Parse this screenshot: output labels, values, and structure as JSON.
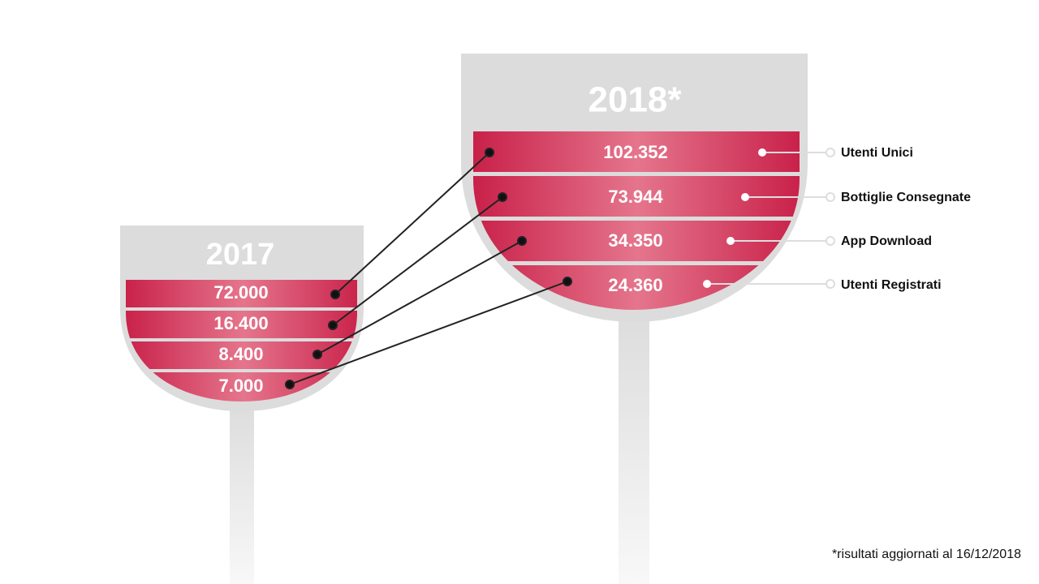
{
  "glasses": [
    {
      "year": "2017",
      "values": [
        "72.000",
        "16.400",
        "8.400",
        "7.000"
      ]
    },
    {
      "year": "2018*",
      "values": [
        "102.352",
        "73.944",
        "34.350",
        "24.360"
      ]
    }
  ],
  "metrics": [
    "Utenti Unici",
    "Bottiglie Consegnate",
    "App Download",
    "Utenti Registrati"
  ],
  "footnote": "*risultati aggiornati al 16/12/2018"
}
